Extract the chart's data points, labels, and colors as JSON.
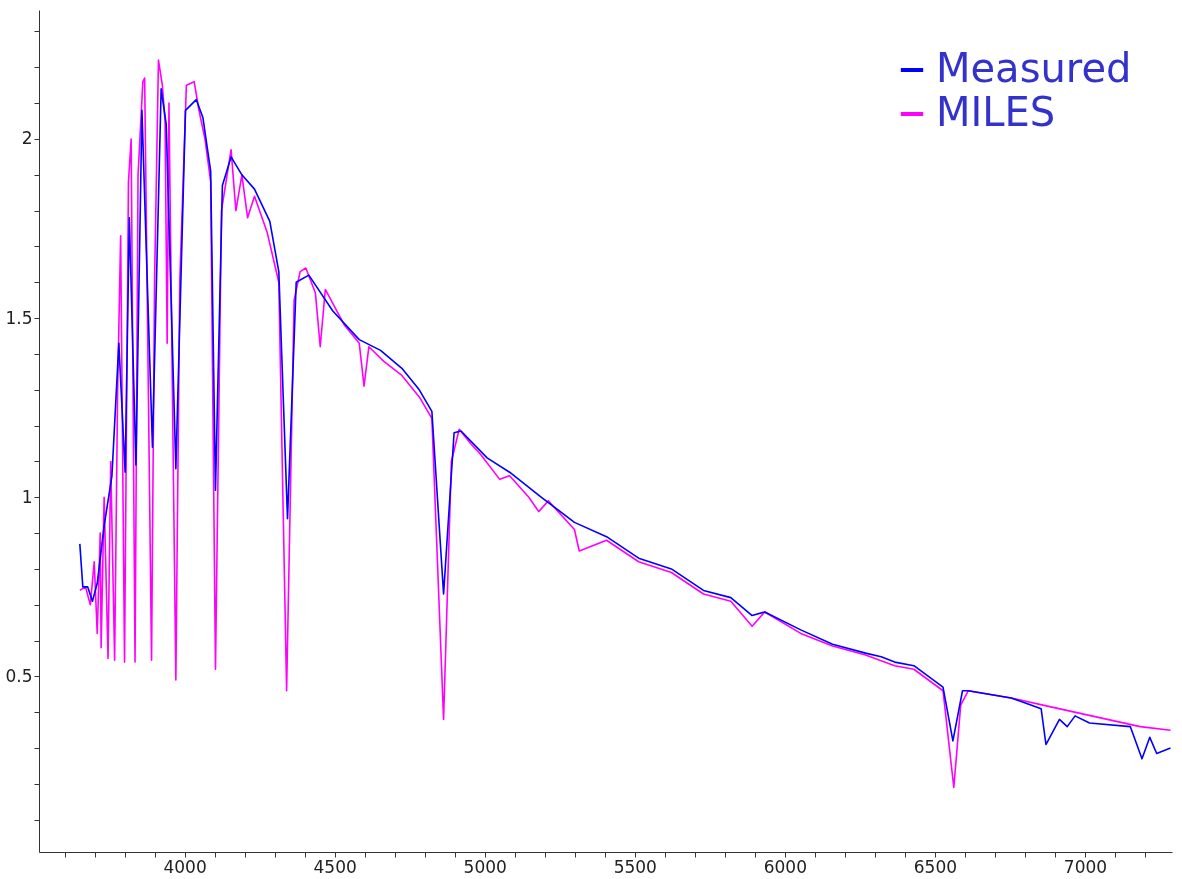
{
  "chart_data": {
    "type": "line",
    "xlim": [
      3515,
      7290
    ],
    "ylim": [
      0.01,
      2.36
    ],
    "xticks": [
      {
        "value": 3600,
        "label": null
      },
      {
        "value": 3700,
        "label": null
      },
      {
        "value": 3800,
        "label": null
      },
      {
        "value": 3900,
        "label": null
      },
      4000,
      {
        "value": 4100,
        "label": null
      },
      {
        "value": 4200,
        "label": null
      },
      {
        "value": 4300,
        "label": null
      },
      {
        "value": 4400,
        "label": null
      },
      4500,
      {
        "value": 4600,
        "label": null
      },
      {
        "value": 4700,
        "label": null
      },
      {
        "value": 4800,
        "label": null
      },
      {
        "value": 4900,
        "label": null
      },
      5000,
      {
        "value": 5100,
        "label": null
      },
      {
        "value": 5200,
        "label": null
      },
      {
        "value": 5300,
        "label": null
      },
      {
        "value": 5400,
        "label": null
      },
      5500,
      {
        "value": 5600,
        "label": null
      },
      {
        "value": 5700,
        "label": null
      },
      {
        "value": 5800,
        "label": null
      },
      {
        "value": 5900,
        "label": null
      },
      6000,
      {
        "value": 6100,
        "label": null
      },
      {
        "value": 6200,
        "label": null
      },
      {
        "value": 6300,
        "label": null
      },
      {
        "value": 6400,
        "label": null
      },
      6500,
      {
        "value": 6600,
        "label": null
      },
      {
        "value": 6700,
        "label": null
      },
      {
        "value": 6800,
        "label": null
      },
      {
        "value": 6900,
        "label": null
      },
      7000,
      {
        "value": 7100,
        "label": null
      },
      {
        "value": 7200,
        "label": null
      }
    ],
    "yticks": [
      {
        "value": 0.1,
        "label": null
      },
      {
        "value": 0.2,
        "label": null
      },
      {
        "value": 0.3,
        "label": null
      },
      {
        "value": 0.4,
        "label": null
      },
      0.5,
      {
        "value": 0.6,
        "label": null
      },
      {
        "value": 0.7,
        "label": null
      },
      {
        "value": 0.8,
        "label": null
      },
      {
        "value": 0.9,
        "label": null
      },
      1,
      {
        "value": 1.1,
        "label": null
      },
      {
        "value": 1.2,
        "label": null
      },
      {
        "value": 1.3,
        "label": null
      },
      {
        "value": 1.4,
        "label": null
      },
      1.5,
      {
        "value": 1.6,
        "label": null
      },
      {
        "value": 1.7,
        "label": null
      },
      {
        "value": 1.8,
        "label": null
      },
      {
        "value": 1.9,
        "label": null
      },
      2,
      {
        "value": 2.1,
        "label": null
      },
      {
        "value": 2.2,
        "label": null
      },
      {
        "value": 2.3,
        "label": null
      }
    ],
    "grid": false,
    "legend": "top right",
    "line_style": "solid",
    "series": [
      {
        "name": "Measured",
        "color": "#0000ff",
        "x": [
          3651,
          3661,
          3677,
          3693,
          3709,
          3732,
          3758,
          3781,
          3802,
          3816,
          3838,
          3858,
          3893,
          3922,
          3939,
          3971,
          4003,
          4039,
          4061,
          4087,
          4103,
          4126,
          4155,
          4191,
          4233,
          4284,
          4314,
          4343,
          4372,
          4414,
          4494,
          4582,
          4653,
          4724,
          4782,
          4824,
          4863,
          4898,
          4921,
          5008,
          5083,
          5189,
          5299,
          5406,
          5513,
          5622,
          5729,
          5820,
          5891,
          5933,
          6053,
          6159,
          6269,
          6321,
          6366,
          6430,
          6527,
          6560,
          6592,
          6611,
          6754,
          6854,
          6870,
          6915,
          6941,
          6967,
          7015,
          7151,
          7190,
          7216,
          7239,
          7285
        ],
        "values": [
          0.87,
          0.75,
          0.75,
          0.71,
          0.76,
          0.92,
          1.06,
          1.43,
          1.07,
          1.78,
          1.09,
          2.08,
          1.14,
          2.14,
          2.04,
          1.08,
          2.08,
          2.11,
          2.06,
          1.91,
          1.02,
          1.87,
          1.95,
          1.9,
          1.86,
          1.77,
          1.63,
          0.94,
          1.6,
          1.62,
          1.52,
          1.44,
          1.41,
          1.36,
          1.3,
          1.24,
          0.73,
          1.18,
          1.185,
          1.11,
          1.07,
          1.0,
          0.93,
          0.89,
          0.83,
          0.8,
          0.74,
          0.72,
          0.67,
          0.68,
          0.63,
          0.59,
          0.565,
          0.555,
          0.54,
          0.53,
          0.47,
          0.32,
          0.46,
          0.46,
          0.44,
          0.41,
          0.31,
          0.38,
          0.36,
          0.39,
          0.37,
          0.36,
          0.27,
          0.33,
          0.285,
          0.3
        ]
      },
      {
        "name": "MILES",
        "color": "#ff00ff",
        "x": [
          3651,
          3670,
          3686,
          3699,
          3709,
          3719,
          3722,
          3732,
          3745,
          3754,
          3767,
          3777,
          3787,
          3800,
          3813,
          3822,
          3835,
          3845,
          3861,
          3867,
          3890,
          3900,
          3913,
          3926,
          3935,
          3942,
          3948,
          3971,
          3984,
          4006,
          4032,
          4048,
          4068,
          4087,
          4103,
          4123,
          4155,
          4171,
          4191,
          4210,
          4233,
          4275,
          4314,
          4340,
          4365,
          4385,
          4404,
          4436,
          4452,
          4469,
          4533,
          4582,
          4598,
          4614,
          4663,
          4724,
          4782,
          4824,
          4863,
          4889,
          4915,
          4953,
          4986,
          5050,
          5083,
          5147,
          5180,
          5212,
          5299,
          5315,
          5406,
          5513,
          5622,
          5729,
          5820,
          5891,
          5933,
          6053,
          6159,
          6269,
          6366,
          6430,
          6527,
          6563,
          6586,
          6611,
          6754,
          6860,
          7022,
          7184,
          7285
        ],
        "values": [
          0.74,
          0.75,
          0.7,
          0.82,
          0.62,
          0.9,
          0.58,
          1.0,
          0.55,
          1.1,
          0.545,
          1.3,
          1.73,
          0.54,
          1.88,
          2.0,
          0.54,
          1.9,
          2.16,
          2.17,
          0.545,
          1.6,
          2.22,
          2.15,
          2.05,
          1.43,
          2.1,
          0.49,
          1.6,
          2.15,
          2.16,
          2.08,
          2.0,
          1.88,
          0.52,
          1.8,
          1.97,
          1.8,
          1.9,
          1.78,
          1.84,
          1.74,
          1.6,
          0.46,
          1.55,
          1.63,
          1.64,
          1.57,
          1.42,
          1.58,
          1.48,
          1.43,
          1.31,
          1.42,
          1.38,
          1.34,
          1.28,
          1.22,
          0.38,
          1.1,
          1.19,
          1.15,
          1.12,
          1.05,
          1.06,
          1.0,
          0.96,
          0.99,
          0.91,
          0.85,
          0.88,
          0.82,
          0.79,
          0.73,
          0.71,
          0.64,
          0.68,
          0.62,
          0.585,
          0.56,
          0.53,
          0.52,
          0.46,
          0.19,
          0.42,
          0.46,
          0.44,
          0.42,
          0.39,
          0.36,
          0.35
        ]
      }
    ]
  }
}
